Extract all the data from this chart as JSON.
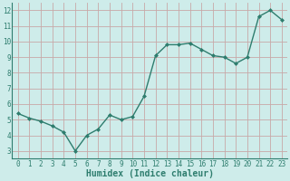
{
  "x": [
    0,
    1,
    2,
    3,
    4,
    5,
    6,
    7,
    8,
    9,
    10,
    11,
    12,
    13,
    14,
    15,
    16,
    17,
    18,
    19,
    20,
    21,
    22,
    23
  ],
  "y": [
    5.4,
    5.1,
    4.9,
    4.6,
    4.2,
    3.0,
    4.0,
    4.4,
    5.3,
    5.0,
    5.2,
    6.5,
    9.1,
    9.8,
    9.8,
    9.9,
    9.5,
    9.1,
    9.0,
    8.6,
    9.0,
    11.6,
    12.0,
    11.4
  ],
  "line_color": "#2e7d6e",
  "marker": "D",
  "marker_size": 2.0,
  "bg_color": "#ceecea",
  "grid_color": "#c8a8a8",
  "xlabel": "Humidex (Indice chaleur)",
  "xlim": [
    -0.5,
    23.5
  ],
  "ylim": [
    2.5,
    12.5
  ],
  "yticks": [
    3,
    4,
    5,
    6,
    7,
    8,
    9,
    10,
    11,
    12
  ],
  "xticks": [
    0,
    1,
    2,
    3,
    4,
    5,
    6,
    7,
    8,
    9,
    10,
    11,
    12,
    13,
    14,
    15,
    16,
    17,
    18,
    19,
    20,
    21,
    22,
    23
  ],
  "tick_fontsize": 5.5,
  "xlabel_fontsize": 7.0,
  "line_width": 1.0
}
